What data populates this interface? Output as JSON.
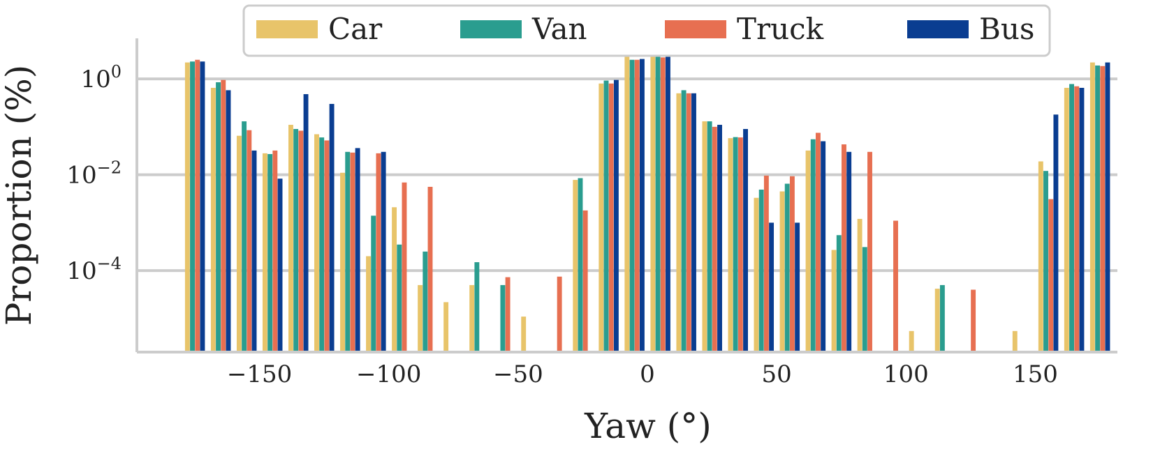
{
  "chart_data": {
    "type": "bar",
    "title": "",
    "xlabel": "Yaw (°)",
    "ylabel": "Proportion (%)",
    "yscale": "log",
    "ylim": [
      2e-06,
      7
    ],
    "xlim": [
      -200,
      200
    ],
    "grid": "horizontal",
    "legend_position": "top",
    "x_ticks": [
      -150,
      -100,
      -50,
      0,
      50,
      100,
      150
    ],
    "x_tick_labels": [
      "−150",
      "−100",
      "−50",
      "0",
      "50",
      "100",
      "150"
    ],
    "y_ticks": [
      {
        "value": 1,
        "base": "10",
        "exp": "0"
      },
      {
        "value": 0.01,
        "base": "10",
        "exp": "−2"
      },
      {
        "value": 0.0001,
        "base": "10",
        "exp": "−4"
      }
    ],
    "categories": [
      -175,
      -165,
      -155,
      -145,
      -135,
      -125,
      -115,
      -105,
      -95,
      -85,
      -75,
      -65,
      -55,
      -45,
      -35,
      -25,
      -15,
      -5,
      5,
      15,
      25,
      35,
      45,
      55,
      65,
      75,
      85,
      95,
      105,
      115,
      125,
      135,
      145,
      155,
      165,
      175
    ],
    "series": [
      {
        "name": "Car",
        "color": "#e8c46a",
        "values": [
          2.2,
          0.65,
          0.065,
          0.028,
          0.11,
          0.07,
          0.011,
          0.0002,
          0.0021,
          5e-05,
          2.2e-05,
          5e-05,
          null,
          1.1e-05,
          null,
          0.0078,
          0.8,
          3.0,
          3.3,
          0.5,
          0.13,
          0.058,
          0.0033,
          0.0045,
          0.032,
          0.00027,
          0.0012,
          null,
          5.5e-06,
          4.2e-05,
          null,
          null,
          5.5e-06,
          0.019,
          0.65,
          2.2
        ]
      },
      {
        "name": "Van",
        "color": "#2a9d8f",
        "values": [
          2.3,
          0.85,
          0.13,
          0.027,
          0.09,
          0.06,
          0.03,
          0.0014,
          0.00035,
          0.00025,
          null,
          0.00015,
          5e-05,
          null,
          null,
          0.0085,
          0.92,
          2.5,
          2.9,
          0.58,
          0.13,
          0.061,
          0.0049,
          0.0065,
          0.055,
          0.00055,
          0.00031,
          null,
          null,
          5e-05,
          null,
          null,
          null,
          0.012,
          0.78,
          1.9
        ]
      },
      {
        "name": "Truck",
        "color": "#e76f51",
        "values": [
          2.5,
          0.95,
          0.085,
          0.032,
          0.083,
          0.052,
          0.029,
          0.028,
          0.0069,
          0.0056,
          null,
          null,
          7.3e-05,
          null,
          7.5e-05,
          0.0018,
          0.8,
          2.5,
          2.8,
          0.5,
          0.1,
          0.06,
          0.0096,
          0.0093,
          0.075,
          0.043,
          0.03,
          0.0011,
          null,
          null,
          4e-05,
          null,
          null,
          0.0031,
          0.7,
          1.85
        ]
      },
      {
        "name": "Bus",
        "color": "#0a3d91",
        "values": [
          2.3,
          0.58,
          0.032,
          0.0083,
          0.48,
          0.3,
          0.036,
          0.03,
          null,
          null,
          null,
          null,
          null,
          null,
          null,
          null,
          0.95,
          2.6,
          2.9,
          0.5,
          0.11,
          0.09,
          0.001,
          0.001,
          0.05,
          0.03,
          null,
          null,
          null,
          null,
          null,
          null,
          null,
          0.18,
          0.65,
          2.2
        ]
      }
    ]
  }
}
